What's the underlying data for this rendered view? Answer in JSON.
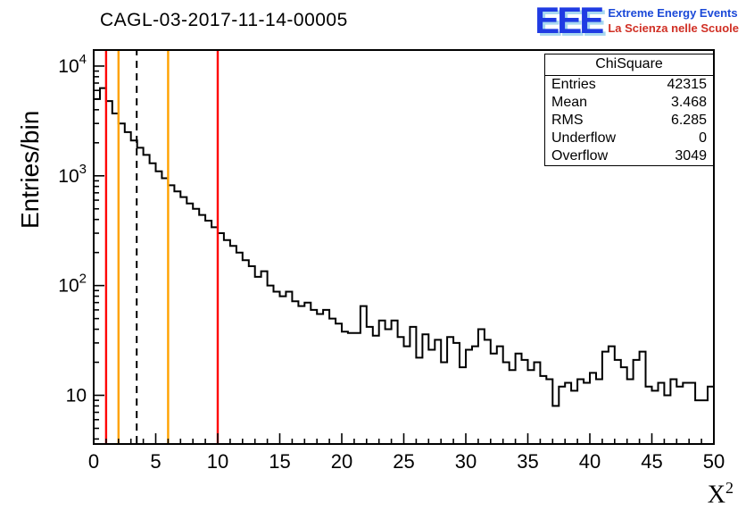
{
  "chart_data": {
    "type": "bar",
    "subtype": "histogram-step",
    "title": "CAGL-03-2017-11-14-00005",
    "xlabel": "X^2",
    "ylabel": "Entries/bin",
    "xlim": [
      0,
      50
    ],
    "ylim": [
      3.6,
      14000
    ],
    "yscale": "log",
    "grid": false,
    "bin_start": 0,
    "bin_width": 0.5,
    "values": [
      5000,
      6300,
      4800,
      3700,
      3000,
      2500,
      2100,
      1800,
      1550,
      1300,
      1100,
      950,
      820,
      720,
      640,
      560,
      500,
      440,
      390,
      340,
      300,
      260,
      230,
      200,
      170,
      150,
      120,
      135,
      100,
      88,
      80,
      88,
      72,
      65,
      70,
      60,
      55,
      60,
      50,
      45,
      38,
      37,
      37,
      65,
      42,
      35,
      48,
      40,
      48,
      34,
      28,
      42,
      22,
      36,
      26,
      32,
      20,
      34,
      30,
      18,
      26,
      28,
      40,
      32,
      24,
      28,
      20,
      17,
      24,
      21,
      17,
      20,
      15,
      14,
      8,
      12,
      13,
      11,
      14,
      13,
      16,
      14,
      25,
      28,
      21,
      18,
      14,
      21,
      25,
      12,
      11,
      13,
      10,
      14,
      12,
      13,
      13,
      9,
      9,
      12
    ],
    "x_ticks": [
      0,
      5,
      10,
      15,
      20,
      25,
      30,
      35,
      40,
      45,
      50
    ],
    "y_ticks": [
      10,
      100,
      1000,
      10000
    ],
    "vlines": [
      {
        "x": 1,
        "color": "#ff0000",
        "style": "solid",
        "name": "red-line-low"
      },
      {
        "x": 2,
        "color": "#ffa200",
        "style": "solid",
        "name": "orange-line-low"
      },
      {
        "x": 3.468,
        "color": "#000000",
        "style": "dashed",
        "name": "mean-dashed-line"
      },
      {
        "x": 6,
        "color": "#ffa200",
        "style": "solid",
        "name": "orange-line-high"
      },
      {
        "x": 10,
        "color": "#ff0000",
        "style": "solid",
        "name": "red-line-high"
      }
    ],
    "colors": {
      "histogram": "#000000",
      "frame": "#000000"
    }
  },
  "stats": {
    "title": "ChiSquare",
    "rows": [
      {
        "label": "Entries",
        "value": "42315"
      },
      {
        "label": "Mean",
        "value": "3.468"
      },
      {
        "label": "RMS",
        "value": "6.285"
      },
      {
        "label": "Underflow",
        "value": "0"
      },
      {
        "label": "Overflow",
        "value": "3049"
      }
    ]
  },
  "logo": {
    "acronym": "EEE",
    "line1": "Extreme Energy Events",
    "line2": "La Scienza nelle Scuole",
    "colors": {
      "acronym_blue": "#1f3be3",
      "acronym_highlight": "#a8d8f0",
      "line1_blue": "#1b49d8",
      "line2_red": "#d02f24"
    }
  }
}
